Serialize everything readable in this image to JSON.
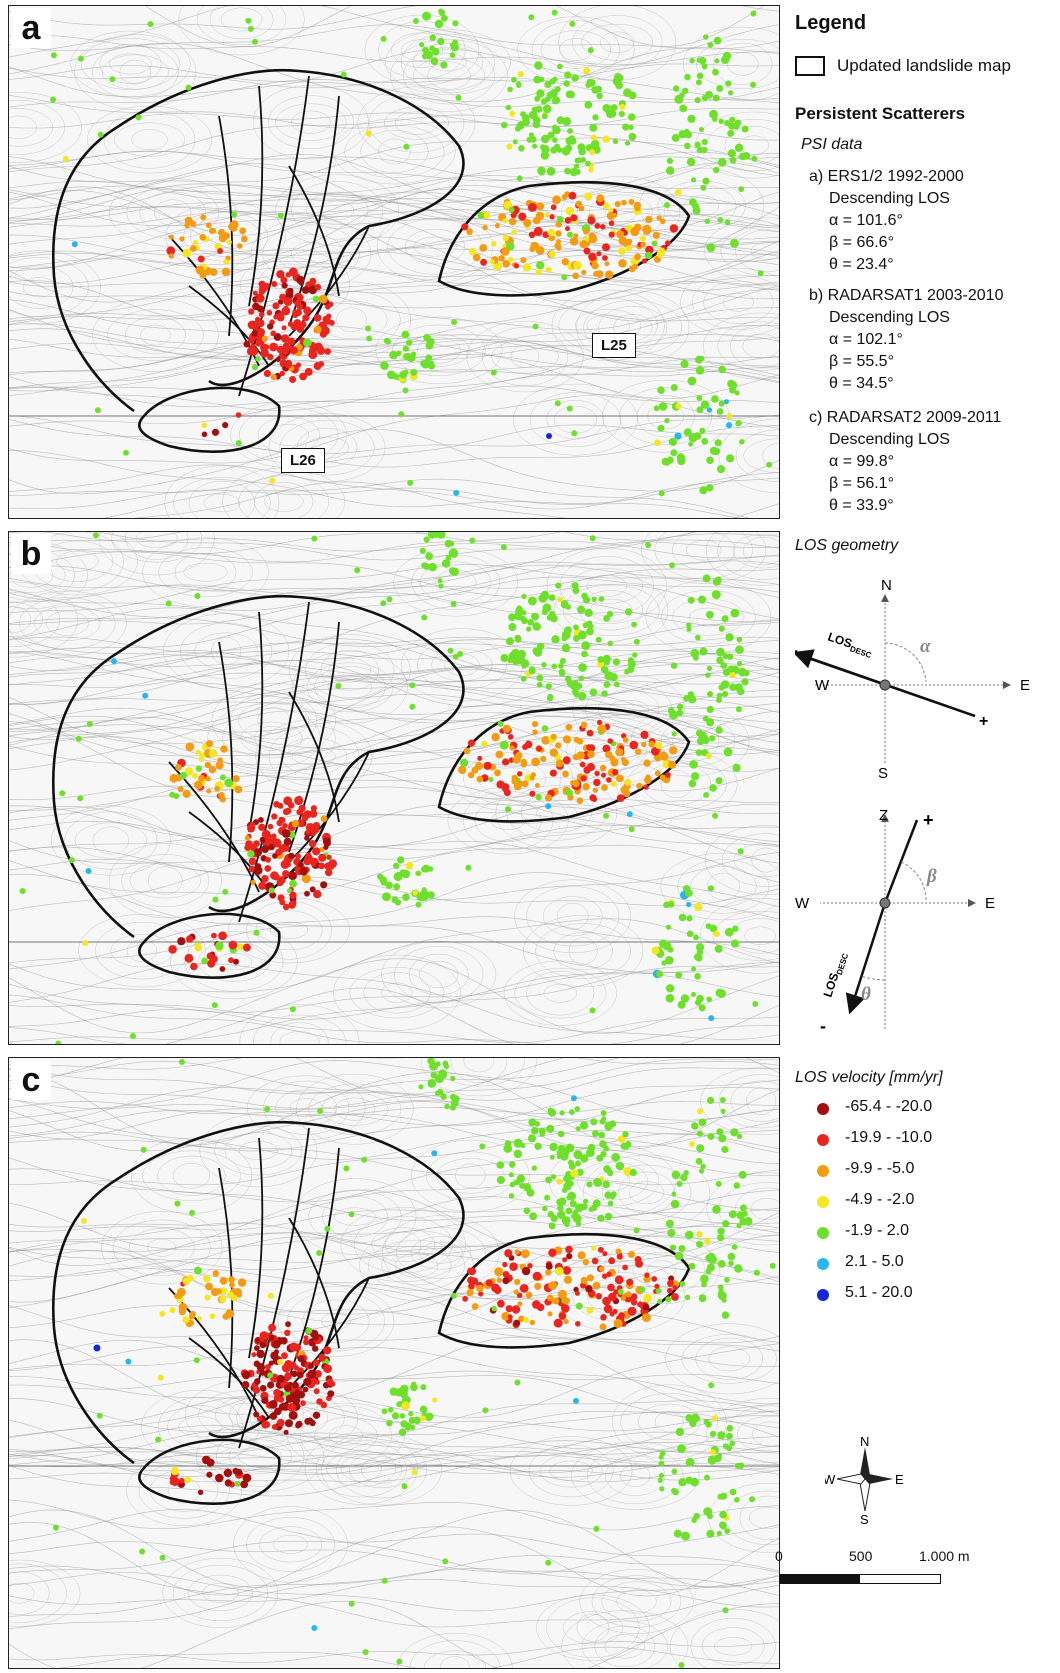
{
  "panels": [
    {
      "label": "a",
      "period": "ers"
    },
    {
      "label": "b",
      "period": "rs1"
    },
    {
      "label": "c",
      "period": "rs2"
    }
  ],
  "landslide_labels": {
    "L25": "L25",
    "L26": "L26"
  },
  "legend": {
    "title": "Legend",
    "updated_map": "Updated landslide map",
    "ps_title": "Persistent Scatterers",
    "psi_title": "PSI data",
    "datasets": [
      {
        "name": "a) ERS1/2 1992-2000",
        "orbit": "Descending LOS",
        "alpha": "α = 101.6°",
        "beta": "β = 66.6°",
        "theta": "θ = 23.4°"
      },
      {
        "name": "b) RADARSAT1 2003-2010",
        "orbit": "Descending LOS",
        "alpha": "α = 102.1°",
        "beta": "β = 55.5°",
        "theta": "θ = 34.5°"
      },
      {
        "name": "c) RADARSAT2 2009-2011",
        "orbit": "Descending LOS",
        "alpha": "α = 99.8°",
        "beta": "β = 56.1°",
        "theta": "θ = 33.9°"
      }
    ],
    "los_geometry_title": "LOS geometry",
    "los_desc": "LOS",
    "los_sub": "DESC",
    "compass_labels": {
      "n": "N",
      "s": "S",
      "w": "W",
      "e": "E",
      "z": "Z"
    },
    "angle_symbols": {
      "alpha": "α",
      "beta": "β",
      "theta": "θ"
    },
    "signs": {
      "minus": "-",
      "plus": "+"
    },
    "velocity_title": "LOS velocity [mm/yr]",
    "velocity_classes": [
      {
        "range": "-65.4  -  -20.0",
        "color": "#a10f0f"
      },
      {
        "range": "-19.9  -  -10.0",
        "color": "#e8251e"
      },
      {
        "range": "-9.9  -  -5.0",
        "color": "#f39c12"
      },
      {
        "range": "-4.9 -  -2.0",
        "color": "#f5e623"
      },
      {
        "range": "-1.9  -  2.0",
        "color": "#6ee02b"
      },
      {
        "range": "2.1  -  5.0",
        "color": "#28b7e8"
      },
      {
        "range": "5.1  -  20.0",
        "color": "#1428d8"
      }
    ],
    "north_arrow": {
      "n": "N",
      "s": "S",
      "w": "W",
      "e": "E"
    },
    "scale_bar": {
      "labels": [
        "0",
        "500",
        "1.000  m"
      ]
    }
  }
}
